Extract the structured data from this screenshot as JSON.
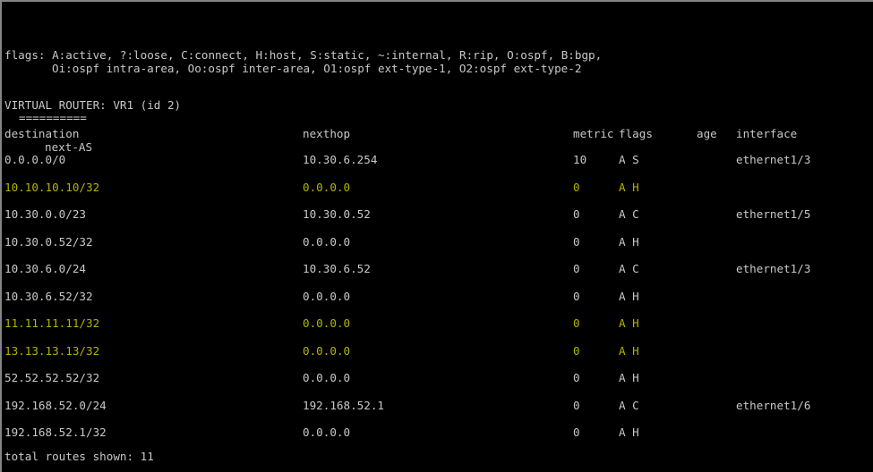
{
  "colors": {
    "background": "#000000",
    "text": "#c8c8c8",
    "highlight_text": "#b4b400",
    "border": "#848484"
  },
  "terminal": {
    "flags_legend": {
      "line1": "flags: A:active, ?:loose, C:connect, H:host, S:static, ~:internal, R:rip, O:ospf, B:bgp,",
      "line2": "Oi:ospf intra-area, Oo:ospf inter-area, O1:ospf ext-type-1, O2:ospf ext-type-2"
    },
    "virtual_router": "VIRTUAL ROUTER: VR1 (id 2)",
    "divider": "==========",
    "table": {
      "headers": {
        "destination": "destination",
        "nexthop": "nexthop",
        "metric": "metric",
        "flags": "flags",
        "age": "age",
        "interface": "interface",
        "wrapped_header": "next-AS"
      },
      "routes": [
        {
          "destination": "0.0.0.0/0",
          "nexthop": "10.30.6.254",
          "metric": "10",
          "flags": "A S",
          "age": "",
          "interface": "ethernet1/3",
          "highlight": false
        },
        {
          "destination": "10.10.10.10/32",
          "nexthop": "0.0.0.0",
          "metric": "0",
          "flags": "A H",
          "age": "",
          "interface": "",
          "highlight": true
        },
        {
          "destination": "10.30.0.0/23",
          "nexthop": "10.30.0.52",
          "metric": "0",
          "flags": "A C",
          "age": "",
          "interface": "ethernet1/5",
          "highlight": false
        },
        {
          "destination": "10.30.0.52/32",
          "nexthop": "0.0.0.0",
          "metric": "0",
          "flags": "A H",
          "age": "",
          "interface": "",
          "highlight": false
        },
        {
          "destination": "10.30.6.0/24",
          "nexthop": "10.30.6.52",
          "metric": "0",
          "flags": "A C",
          "age": "",
          "interface": "ethernet1/3",
          "highlight": false
        },
        {
          "destination": "10.30.6.52/32",
          "nexthop": "0.0.0.0",
          "metric": "0",
          "flags": "A H",
          "age": "",
          "interface": "",
          "highlight": false
        },
        {
          "destination": "11.11.11.11/32",
          "nexthop": "0.0.0.0",
          "metric": "0",
          "flags": "A H",
          "age": "",
          "interface": "",
          "highlight": true
        },
        {
          "destination": "13.13.13.13/32",
          "nexthop": "0.0.0.0",
          "metric": "0",
          "flags": "A H",
          "age": "",
          "interface": "",
          "highlight": true
        },
        {
          "destination": "52.52.52.52/32",
          "nexthop": "0.0.0.0",
          "metric": "0",
          "flags": "A H",
          "age": "",
          "interface": "",
          "highlight": false
        },
        {
          "destination": "192.168.52.0/24",
          "nexthop": "192.168.52.1",
          "metric": "0",
          "flags": "A C",
          "age": "",
          "interface": "ethernet1/6",
          "highlight": false
        },
        {
          "destination": "192.168.52.1/32",
          "nexthop": "0.0.0.0",
          "metric": "0",
          "flags": "A H",
          "age": "",
          "interface": "",
          "highlight": false
        }
      ]
    },
    "footer": "total routes shown: 11"
  }
}
